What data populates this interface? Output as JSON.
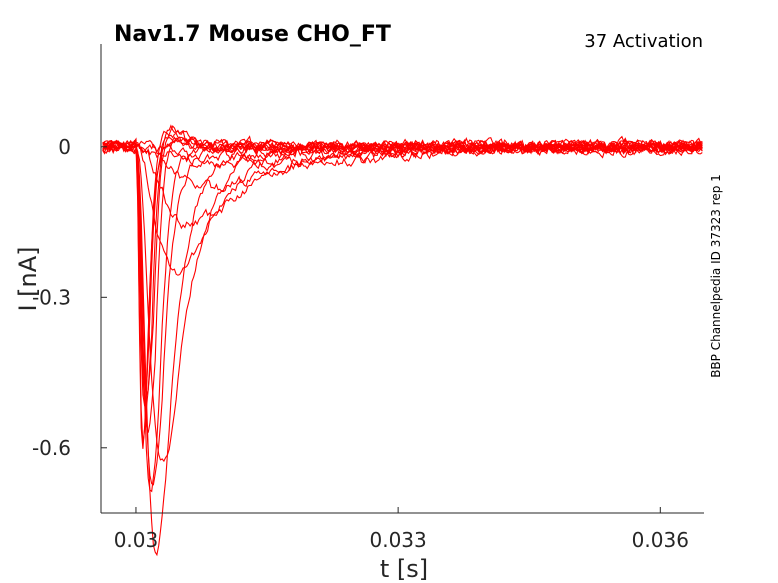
{
  "chart_data": {
    "type": "line",
    "title": "Nav1.7  Mouse  CHO_FT",
    "protocol_label": "37  Activation",
    "xlabel": "t [s]",
    "ylabel": "I [nA]",
    "side_label": "BBP Channelpedia ID 37323 rep 1",
    "xlim": [
      0.0296,
      0.0365
    ],
    "ylim": [
      -0.73,
      0.205
    ],
    "xticks": [
      0.03,
      0.033,
      0.036
    ],
    "xtick_labels": [
      "0.03",
      "0.033",
      "0.036"
    ],
    "yticks": [
      0,
      -0.3,
      -0.6
    ],
    "ytick_labels": [
      "0",
      "-0.3",
      "-0.6"
    ],
    "grid": false,
    "color": "#ff0000",
    "trace_onset": 0.03,
    "series": [
      {
        "peak_t": 0.03012,
        "peak_i": -0.48,
        "tail_i": 0.04,
        "decay": 6e-05
      },
      {
        "peak_t": 0.03013,
        "peak_i": -0.45,
        "tail_i": 0.07,
        "decay": 6e-05
      },
      {
        "peak_t": 0.03015,
        "peak_i": -0.4,
        "tail_i": 0.09,
        "decay": 7e-05
      },
      {
        "peak_t": 0.03018,
        "peak_i": -0.38,
        "tail_i": 0.11,
        "decay": 8e-05
      },
      {
        "peak_t": 0.0302,
        "peak_i": -0.36,
        "tail_i": 0.12,
        "decay": 9e-05
      },
      {
        "peak_t": 0.03022,
        "peak_i": -0.42,
        "tail_i": 0.13,
        "decay": 0.0001
      },
      {
        "peak_t": 0.03027,
        "peak_i": -0.5,
        "tail_i": 0.1,
        "decay": 0.00012
      },
      {
        "peak_t": 0.0303,
        "peak_i": -0.51,
        "tail_i": 0.08,
        "decay": 0.00014
      },
      {
        "peak_t": 0.03035,
        "peak_i": -0.65,
        "tail_i": 0.05,
        "decay": 0.00018
      },
      {
        "peak_t": 0.03045,
        "peak_i": -0.52,
        "tail_i": 0.03,
        "decay": 0.00024
      },
      {
        "peak_t": 0.03058,
        "peak_i": -0.23,
        "tail_i": 0.0,
        "decay": 0.0004
      },
      {
        "peak_t": 0.03075,
        "peak_i": -0.15,
        "tail_i": 0.0,
        "decay": 0.0006
      },
      {
        "peak_t": 0.03095,
        "peak_i": -0.08,
        "tail_i": 0.0,
        "decay": 0.001
      },
      {
        "peak_t": 0.0311,
        "peak_i": -0.04,
        "tail_i": 0.0,
        "decay": 0.0013
      },
      {
        "peak_t": 0.0312,
        "peak_i": -0.02,
        "tail_i": 0.0,
        "decay": 0.0015
      }
    ]
  }
}
